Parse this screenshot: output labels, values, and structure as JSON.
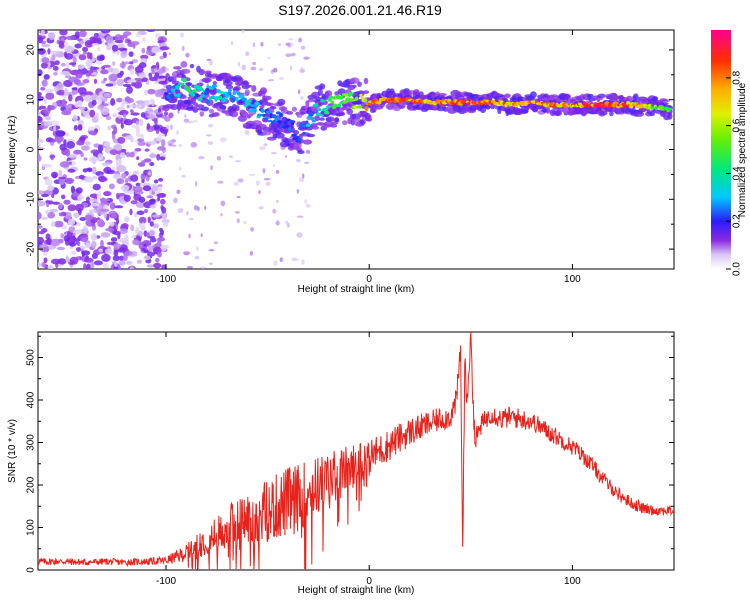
{
  "title": "S197.2026.001.21.46.R19",
  "chart_data": [
    {
      "type": "heatmap",
      "xlabel": "Height of straight line (km)",
      "ylabel": "Frequency (Hz)",
      "xlim": [
        -163,
        150
      ],
      "ylim": [
        -24,
        24
      ],
      "xticks": [
        -100,
        0,
        100
      ],
      "yticks": [
        -20,
        -10,
        0,
        10,
        20
      ],
      "colorbar": {
        "label": "Normalized spectral amplitude",
        "range": [
          0,
          1
        ],
        "ticks": [
          0.0,
          0.2,
          0.4,
          0.6,
          0.8
        ]
      },
      "ridge": {
        "x": [
          -100,
          -95,
          -90,
          -85,
          -80,
          -75,
          -70,
          -65,
          -60,
          -55,
          -50,
          -45,
          -40,
          -35,
          -30,
          -25,
          -20,
          -15,
          -10,
          -5,
          0,
          10,
          20,
          30,
          40,
          50,
          60,
          70,
          80,
          90,
          100,
          110,
          120,
          130,
          140,
          148
        ],
        "y": [
          10,
          12,
          13,
          12,
          11,
          11.5,
          11,
          10,
          9,
          8,
          7,
          6,
          5,
          3,
          6,
          8,
          9,
          9.5,
          10,
          9.5,
          9.5,
          10,
          10,
          9.5,
          9.5,
          9.5,
          9.5,
          9,
          9.5,
          9,
          9,
          9,
          9,
          9,
          8.5,
          8
        ],
        "amplitude": [
          0.2,
          0.35,
          0.45,
          0.4,
          0.3,
          0.4,
          0.35,
          0.3,
          0.35,
          0.3,
          0.25,
          0.25,
          0.25,
          0.2,
          0.3,
          0.35,
          0.45,
          0.55,
          0.6,
          0.65,
          0.8,
          0.85,
          0.85,
          0.8,
          0.85,
          0.9,
          0.85,
          0.8,
          0.85,
          0.8,
          0.8,
          0.9,
          0.95,
          0.8,
          0.6,
          0.5
        ]
      }
    },
    {
      "type": "line",
      "xlabel": "Height of straight line (km)",
      "ylabel": "SNR (10 * v/v)",
      "xlim": [
        -163,
        150
      ],
      "ylim": [
        0,
        560
      ],
      "xticks": [
        -100,
        0,
        100
      ],
      "yticks": [
        0,
        100,
        200,
        300,
        400,
        500
      ],
      "series": [
        {
          "name": "SNR",
          "color": "#e8221b",
          "x": [
            -163,
            -150,
            -140,
            -130,
            -120,
            -110,
            -100,
            -90,
            -85,
            -80,
            -75,
            -70,
            -65,
            -60,
            -55,
            -50,
            -45,
            -40,
            -35,
            -30,
            -25,
            -20,
            -15,
            -10,
            -5,
            0,
            5,
            10,
            15,
            20,
            25,
            30,
            35,
            40,
            43,
            45,
            46,
            47,
            48,
            50,
            52,
            55,
            60,
            65,
            70,
            75,
            80,
            85,
            90,
            95,
            100,
            105,
            110,
            115,
            120,
            125,
            130,
            135,
            140,
            145,
            150
          ],
          "y": [
            20,
            20,
            18,
            20,
            18,
            20,
            22,
            40,
            55,
            75,
            80,
            100,
            110,
            120,
            130,
            140,
            150,
            160,
            170,
            185,
            200,
            215,
            225,
            240,
            255,
            265,
            280,
            295,
            310,
            325,
            335,
            345,
            355,
            360,
            400,
            520,
            30,
            480,
            400,
            550,
            300,
            340,
            370,
            355,
            360,
            355,
            350,
            335,
            320,
            305,
            290,
            270,
            245,
            215,
            190,
            170,
            155,
            145,
            140,
            140,
            140
          ],
          "noise": [
            8,
            8,
            8,
            8,
            8,
            8,
            10,
            20,
            30,
            40,
            45,
            55,
            60,
            65,
            70,
            75,
            80,
            85,
            80,
            75,
            70,
            65,
            60,
            55,
            50,
            45,
            40,
            38,
            36,
            34,
            32,
            30,
            28,
            28,
            30,
            40,
            40,
            40,
            40,
            40,
            30,
            25,
            25,
            25,
            25,
            25,
            22,
            22,
            22,
            20,
            20,
            20,
            18,
            18,
            16,
            16,
            14,
            14,
            12,
            12,
            12
          ]
        }
      ]
    }
  ]
}
